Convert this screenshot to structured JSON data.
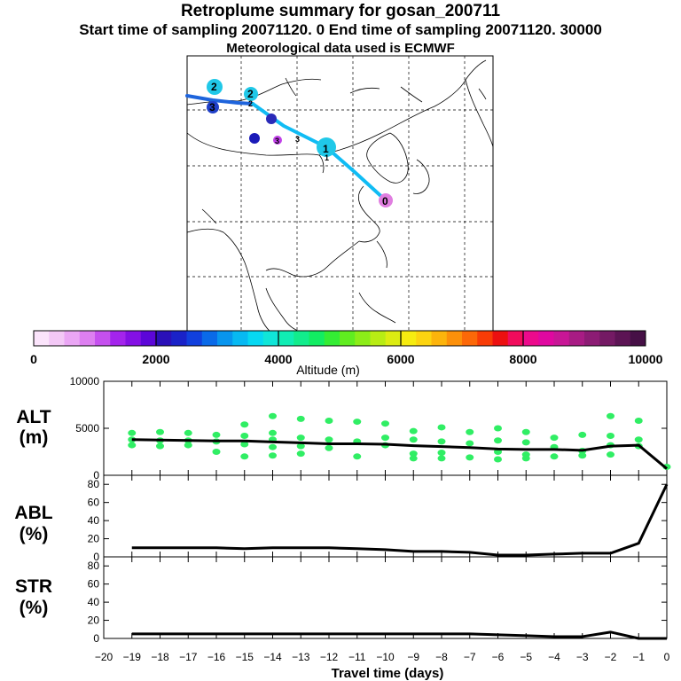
{
  "header": {
    "title": "Retroplume summary for gosan_200711",
    "sampling": "Start time of sampling 20071120.     0     End time of sampling 20071120. 30000",
    "met": "Meteorological data used is ECMWF"
  },
  "colorbar": {
    "label": "Altitude  (m)",
    "ticks": [
      "0",
      "2000",
      "4000",
      "6000",
      "8000",
      "10000"
    ],
    "colors": [
      "#fbe4fb",
      "#f3c8f6",
      "#eaa6f4",
      "#dd7ff0",
      "#c550ee",
      "#a424ec",
      "#8410e4",
      "#5c06d8",
      "#2a10b8",
      "#1a22c8",
      "#1140dd",
      "#0a6ae8",
      "#0895ee",
      "#07b9f2",
      "#06d8f2",
      "#10e6d8",
      "#10edb4",
      "#12ec8c",
      "#12ec62",
      "#34ec34",
      "#60ec20",
      "#8cec18",
      "#b8ec14",
      "#dcec12",
      "#f6ec10",
      "#fcd410",
      "#fcb40c",
      "#fc900a",
      "#fc6808",
      "#f83c06",
      "#ec1010",
      "#f00c5c",
      "#ec0a8c",
      "#e008a0",
      "#c81696",
      "#a81c84",
      "#8c1c74",
      "#741a64",
      "#5c1454",
      "#461046"
    ]
  },
  "map": {
    "trajectory_labels": [
      "0",
      "1",
      "1",
      "2",
      "2",
      "2",
      "3",
      "3",
      "3"
    ],
    "trajectory_colors": [
      "#1e64dc",
      "#10bcf4"
    ],
    "point_colors": [
      "#e07ee0",
      "#20c8e8",
      "#1a1ab8",
      "#c040e8",
      "#2a2ab8",
      "#2040c8"
    ]
  },
  "panel_labels": {
    "alt": [
      "ALT",
      "(m)"
    ],
    "abl": [
      "ABL",
      "(%)"
    ],
    "str": [
      "STR",
      "(%)"
    ]
  },
  "chart_data": [
    {
      "type": "line",
      "name": "ALT",
      "ylabel": "ALT (m)",
      "ylim": [
        0,
        10000
      ],
      "yticks": [
        "0",
        "5000",
        "10000"
      ],
      "x": [
        -19,
        -18,
        -17,
        -16,
        -15,
        -14,
        -13,
        -12,
        -11,
        -10,
        -9,
        -8,
        -7,
        -6,
        -5,
        -4,
        -3,
        -2,
        -1,
        0
      ],
      "mean": [
        3800,
        3750,
        3700,
        3650,
        3650,
        3550,
        3450,
        3350,
        3350,
        3300,
        3150,
        3050,
        2950,
        2800,
        2750,
        2750,
        2650,
        3100,
        3200,
        700
      ],
      "scatter_color": "#30ee64",
      "scatter": [
        [
          -19,
          4500
        ],
        [
          -19,
          3800
        ],
        [
          -19,
          3200
        ],
        [
          -18,
          4600
        ],
        [
          -18,
          3700
        ],
        [
          -18,
          3100
        ],
        [
          -17,
          4500
        ],
        [
          -17,
          3700
        ],
        [
          -17,
          3200
        ],
        [
          -16,
          4300
        ],
        [
          -16,
          3600
        ],
        [
          -16,
          2500
        ],
        [
          -15,
          5400
        ],
        [
          -15,
          4200
        ],
        [
          -15,
          3300
        ],
        [
          -15,
          2000
        ],
        [
          -14,
          6300
        ],
        [
          -14,
          4500
        ],
        [
          -14,
          3800
        ],
        [
          -14,
          3000
        ],
        [
          -14,
          2100
        ],
        [
          -13,
          6000
        ],
        [
          -13,
          4000
        ],
        [
          -13,
          3100
        ],
        [
          -13,
          2300
        ],
        [
          -12,
          5800
        ],
        [
          -12,
          3800
        ],
        [
          -12,
          2900
        ],
        [
          -11,
          5700
        ],
        [
          -11,
          3600
        ],
        [
          -11,
          2000
        ],
        [
          -10,
          5500
        ],
        [
          -10,
          4000
        ],
        [
          -10,
          3200
        ],
        [
          -9,
          4700
        ],
        [
          -9,
          3800
        ],
        [
          -9,
          2300
        ],
        [
          -9,
          1800
        ],
        [
          -8,
          5100
        ],
        [
          -8,
          3600
        ],
        [
          -8,
          2400
        ],
        [
          -8,
          1800
        ],
        [
          -7,
          4600
        ],
        [
          -7,
          3400
        ],
        [
          -7,
          1900
        ],
        [
          -6,
          5000
        ],
        [
          -6,
          3700
        ],
        [
          -6,
          2500
        ],
        [
          -6,
          1700
        ],
        [
          -5,
          4600
        ],
        [
          -5,
          3500
        ],
        [
          -5,
          2200
        ],
        [
          -5,
          1800
        ],
        [
          -4,
          4000
        ],
        [
          -4,
          3000
        ],
        [
          -4,
          2000
        ],
        [
          -3,
          4300
        ],
        [
          -3,
          2600
        ],
        [
          -3,
          2100
        ],
        [
          -2,
          6300
        ],
        [
          -2,
          4200
        ],
        [
          -2,
          3200
        ],
        [
          -2,
          2200
        ],
        [
          -1,
          5800
        ],
        [
          -1,
          3800
        ],
        [
          -1,
          3100
        ],
        [
          0,
          900
        ]
      ]
    },
    {
      "type": "line",
      "name": "ABL",
      "ylabel": "ABL (%)",
      "ylim": [
        0,
        90
      ],
      "yticks": [
        "0",
        "20",
        "40",
        "60",
        "80"
      ],
      "x": [
        -19,
        -18,
        -17,
        -16,
        -15,
        -14,
        -13,
        -12,
        -11,
        -10,
        -9,
        -8,
        -7,
        -6,
        -5,
        -4,
        -3,
        -2,
        -1,
        0
      ],
      "values": [
        10,
        10,
        10,
        10,
        9,
        10,
        10,
        10,
        9,
        8,
        6,
        6,
        5,
        2,
        2,
        3,
        4,
        4,
        15,
        80
      ]
    },
    {
      "type": "line",
      "name": "STR",
      "ylabel": "STR (%)",
      "ylim": [
        0,
        90
      ],
      "yticks": [
        "0",
        "20",
        "40",
        "60",
        "80"
      ],
      "x": [
        -19,
        -18,
        -17,
        -16,
        -15,
        -14,
        -13,
        -12,
        -11,
        -10,
        -9,
        -8,
        -7,
        -6,
        -5,
        -4,
        -3,
        -2,
        -1,
        0
      ],
      "values": [
        5,
        5,
        5,
        5,
        5,
        5,
        5,
        5,
        5,
        5,
        5,
        5,
        5,
        4,
        3,
        2,
        2,
        7,
        0,
        0
      ],
      "xlabel": "Travel time (days)",
      "xticks": [
        "−20",
        "−19",
        "−18",
        "−17",
        "−16",
        "−15",
        "−14",
        "−13",
        "−12",
        "−11",
        "−10",
        "−9",
        "−8",
        "−7",
        "−6",
        "−5",
        "−4",
        "−3",
        "−2",
        "−1",
        "0"
      ]
    }
  ]
}
